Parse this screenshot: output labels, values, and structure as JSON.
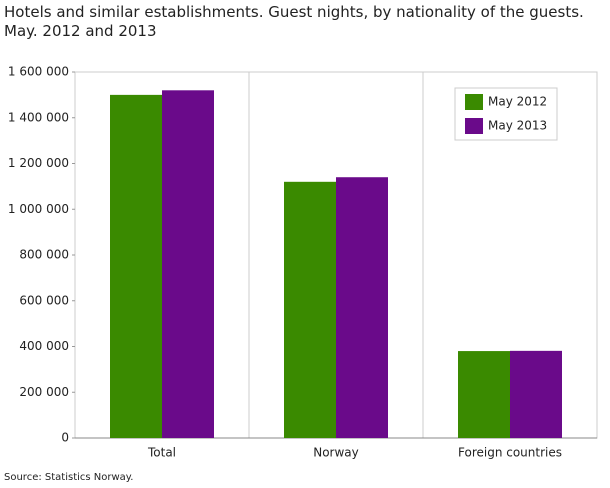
{
  "chart_data": {
    "type": "bar",
    "title": "Hotels and similar establishments. Guest nights, by nationality of the guests. May. 2012 and 2013",
    "source": "Source: Statistics Norway.",
    "categories": [
      "Total",
      "Norway",
      "Foreign countries"
    ],
    "series": [
      {
        "name": "May 2012",
        "color": "#3a8a00",
        "values": [
          1500000,
          1120000,
          380000
        ]
      },
      {
        "name": "May 2013",
        "color": "#6a0a8a",
        "values": [
          1520000,
          1140000,
          381000
        ]
      }
    ],
    "ylim": [
      0,
      1600000
    ],
    "yticks": [
      0,
      {
        "value": 200000,
        "label": "200 000"
      },
      {
        "value": 400000,
        "label": "400 000"
      },
      {
        "value": 600000,
        "label": "600 000"
      },
      {
        "value": 800000,
        "label": "800 000"
      },
      {
        "value": 1000000,
        "label": "1 000 000"
      },
      {
        "value": 1200000,
        "label": "1 200 000"
      },
      {
        "value": 1400000,
        "label": "1 400 000"
      },
      {
        "value": 1600000,
        "label": "1 600 000"
      }
    ],
    "legend": "top-right"
  }
}
